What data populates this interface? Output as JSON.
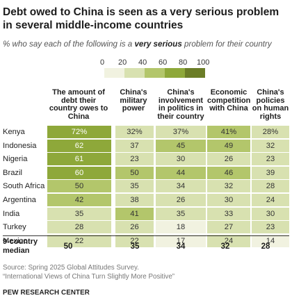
{
  "header": {
    "title": "Debt owed to China is seen as a very serious problem in several middle-income countries",
    "subtitle_pre": "% who say each of the following is a ",
    "subtitle_bold": "very serious",
    "subtitle_post": " problem for their country"
  },
  "legend": {
    "ticks": [
      "0",
      "20",
      "40",
      "60",
      "80",
      "100"
    ],
    "colors": [
      "#f1f2e0",
      "#d8e1b0",
      "#b3c66b",
      "#8ea83a",
      "#6b7d27"
    ]
  },
  "chart_data": {
    "type": "table",
    "columns": [
      "The amount of debt their country owes to China",
      "China's military power",
      "China's involvement in politics in their country",
      "Economic competition with China",
      "China's policies on human rights"
    ],
    "rows": [
      {
        "country": "Kenya",
        "values": [
          "72%",
          "32%",
          "37%",
          "41%",
          "28%"
        ],
        "nums": [
          72,
          32,
          37,
          41,
          28
        ]
      },
      {
        "country": "Indonesia",
        "values": [
          "62",
          "37",
          "45",
          "49",
          "32"
        ],
        "nums": [
          62,
          37,
          45,
          49,
          32
        ]
      },
      {
        "country": "Nigeria",
        "values": [
          "61",
          "23",
          "30",
          "26",
          "23"
        ],
        "nums": [
          61,
          23,
          30,
          26,
          23
        ]
      },
      {
        "country": "Brazil",
        "values": [
          "60",
          "50",
          "44",
          "46",
          "39"
        ],
        "nums": [
          60,
          50,
          44,
          46,
          39
        ]
      },
      {
        "country": "South Africa",
        "values": [
          "50",
          "35",
          "34",
          "32",
          "28"
        ],
        "nums": [
          50,
          35,
          34,
          32,
          28
        ]
      },
      {
        "country": "Argentina",
        "values": [
          "42",
          "38",
          "26",
          "30",
          "24"
        ],
        "nums": [
          42,
          38,
          26,
          30,
          24
        ]
      },
      {
        "country": "India",
        "values": [
          "35",
          "41",
          "35",
          "33",
          "30"
        ],
        "nums": [
          35,
          41,
          35,
          33,
          30
        ]
      },
      {
        "country": "Turkey",
        "values": [
          "28",
          "26",
          "18",
          "27",
          "23"
        ],
        "nums": [
          28,
          26,
          18,
          27,
          23
        ]
      },
      {
        "country": "Mexico",
        "values": [
          "22",
          "22",
          "17",
          "24",
          "14"
        ],
        "nums": [
          22,
          22,
          17,
          24,
          14
        ]
      }
    ],
    "median_label": "9-country median",
    "medians": [
      "50",
      "35",
      "34",
      "32",
      "28"
    ]
  },
  "footer": {
    "source": "Source: Spring 2025 Global Attitudes Survey.",
    "report": "“International Views of China Turn Slightly More Positive”",
    "logo": "PEW RESEARCH CENTER"
  }
}
